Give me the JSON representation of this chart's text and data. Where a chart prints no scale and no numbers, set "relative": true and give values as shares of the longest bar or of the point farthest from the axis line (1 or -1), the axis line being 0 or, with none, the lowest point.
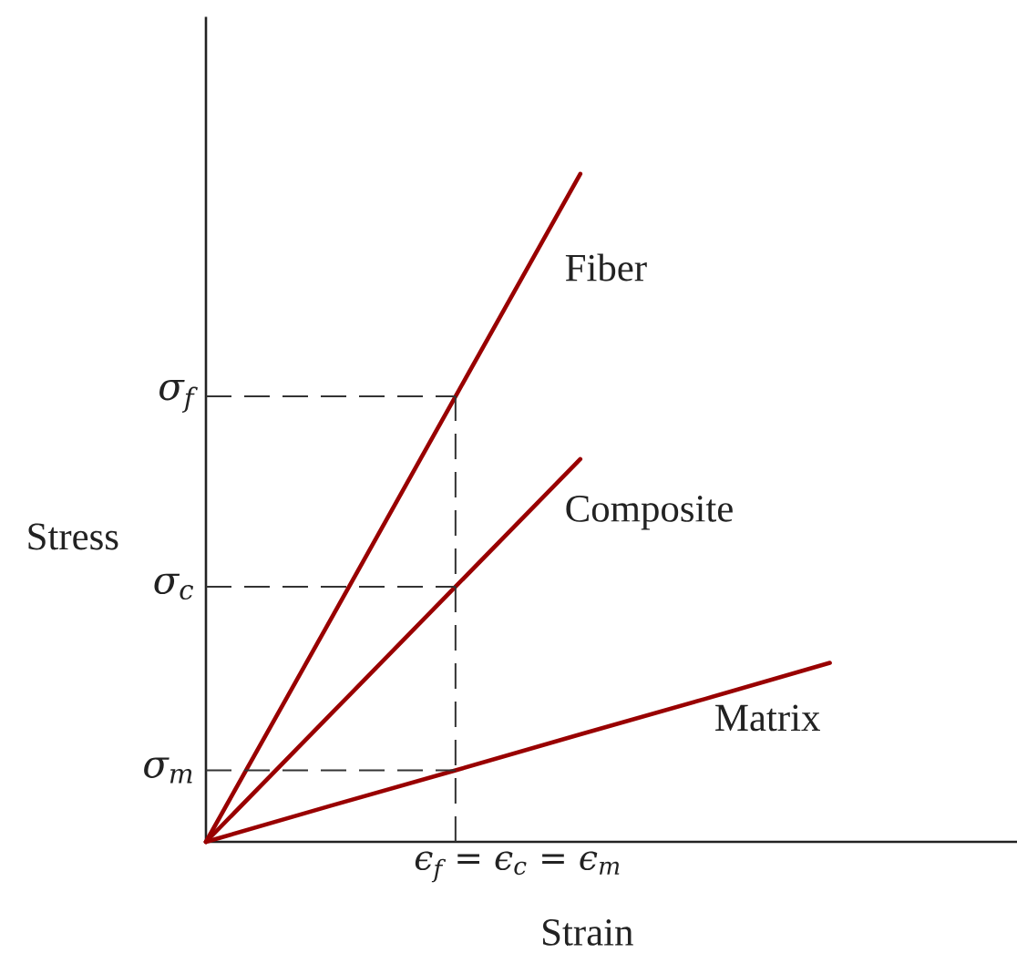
{
  "chart_data": {
    "type": "line",
    "relative": true,
    "xlabel": "Strain",
    "ylabel": "Stress",
    "marker": "none",
    "line_style": "solid",
    "categories": [
      null,
      null,
      null,
      null,
      null,
      null
    ],
    "series": [
      {
        "name": "Fiber",
        "color": "#990000",
        "values": [
          0,
          0.333,
          0.667,
          1,
          null,
          null
        ]
      },
      {
        "name": "Composite",
        "color": "#990000",
        "values": [
          0,
          0.191,
          0.382,
          0.573,
          null,
          null
        ]
      },
      {
        "name": "Matrix",
        "color": "#990000",
        "values": [
          0,
          0.054,
          0.107,
          0.161,
          0.214,
          0.268
        ]
      }
    ],
    "ref_lines": [
      {
        "axis": "y",
        "value": 0.667,
        "label": "σ$_{f}$",
        "color": "#333333",
        "line_style": "dashed"
      },
      {
        "axis": "y",
        "value": 0.382,
        "label": "σ$_{c}$",
        "color": "#333333",
        "line_style": "dashed"
      },
      {
        "axis": "y",
        "value": 0.107,
        "label": "σ$_{m}$",
        "color": "#333333",
        "line_style": "dashed"
      }
    ],
    "annotations": [
      "ϵ$_{f}$ = ϵ$_{c}$ = ϵ$_{m}$"
    ]
  }
}
